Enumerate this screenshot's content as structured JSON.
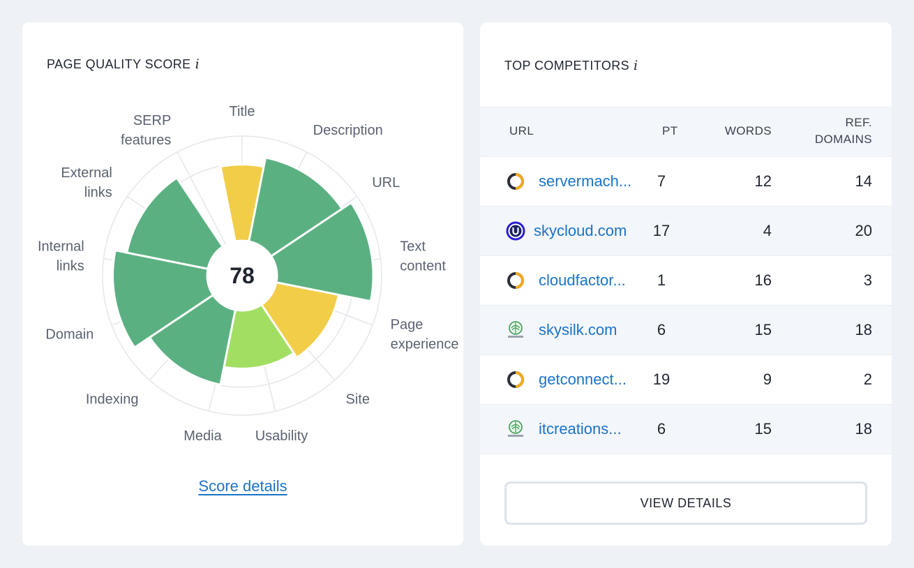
{
  "quality": {
    "title": "PAGE QUALITY SCORE",
    "info_glyph": "i",
    "score": "78",
    "score_link": "Score details",
    "colors": {
      "green": "#5bb082",
      "yellow": "#f2cd48",
      "light_green": "#a1de62",
      "grid": "#e4e6ea"
    },
    "segments": [
      {
        "label_lines": [
          "Title"
        ],
        "level": 0.78,
        "color": "yellow"
      },
      {
        "label_lines": [
          "Description"
        ],
        "level": 0.88,
        "color": "green"
      },
      {
        "label_lines": [
          "URL"
        ],
        "level": 0.88,
        "color": "green"
      },
      {
        "label_lines": [
          "Text",
          "content"
        ],
        "level": 1.0,
        "color": "green"
      },
      {
        "label_lines": [
          "Page",
          "experience"
        ],
        "level": 1.0,
        "color": "green"
      },
      {
        "label_lines": [
          "Site"
        ],
        "level": 0.64,
        "color": "yellow"
      },
      {
        "label_lines": [
          "Usability"
        ],
        "level": 0.64,
        "color": "yellow"
      },
      {
        "label_lines": [
          "Media"
        ],
        "level": 0.58,
        "color": "light_green"
      },
      {
        "label_lines": [
          "Indexing"
        ],
        "level": 0.58,
        "color": "light_green"
      },
      {
        "label_lines": [
          "Domain"
        ],
        "level": 0.78,
        "color": "green"
      },
      {
        "label_lines": [
          "Internal",
          "links"
        ],
        "level": 0.98,
        "color": "green"
      },
      {
        "label_lines": [
          "External",
          "links"
        ],
        "level": 0.98,
        "color": "green"
      },
      {
        "label_lines": [
          "SERP",
          "features"
        ],
        "level": 0.85,
        "color": "green"
      }
    ],
    "wedges": [
      {
        "from": 0,
        "to": 1,
        "level": 0.78,
        "color": "yellow"
      },
      {
        "from": 1,
        "to": 3,
        "level": 0.88,
        "color": "green"
      },
      {
        "from": 3,
        "to": 5,
        "level": 1.0,
        "color": "green"
      },
      {
        "from": 5,
        "to": 7,
        "level": 0.64,
        "color": "yellow"
      },
      {
        "from": 7,
        "to": 9,
        "level": 0.58,
        "color": "light_green"
      },
      {
        "from": 9,
        "to": 11,
        "level": 0.78,
        "color": "green"
      },
      {
        "from": 11,
        "to": 13,
        "level": 0.98,
        "color": "green"
      },
      {
        "from": 13,
        "to": 15,
        "level": 0.85,
        "color": "green"
      }
    ]
  },
  "competitors": {
    "title": "TOP COMPETITORS",
    "info_glyph": "i",
    "columns": {
      "url": "URL",
      "pt": "PT",
      "words": "WORDS",
      "ref_domains_line1": "REF.",
      "ref_domains_line2": "DOMAINS"
    },
    "rows": [
      {
        "icon": "ring-logo-icon",
        "url": "servermach...",
        "pt": "7",
        "words": "12",
        "ref": "14"
      },
      {
        "icon": "u-circle-logo-icon",
        "url": "skycloud.com",
        "pt": "17",
        "words": "4",
        "ref": "20"
      },
      {
        "icon": "ring-logo-icon",
        "url": "cloudfactor...",
        "pt": "1",
        "words": "16",
        "ref": "3"
      },
      {
        "icon": "earth-logo-icon",
        "url": "skysilk.com",
        "pt": "6",
        "words": "15",
        "ref": "18"
      },
      {
        "icon": "ring-logo-icon",
        "url": "getconnect...",
        "pt": "19",
        "words": "9",
        "ref": "2"
      },
      {
        "icon": "earth-logo-icon",
        "url": "itcreations...",
        "pt": "6",
        "words": "15",
        "ref": "18"
      }
    ],
    "button": "VIEW DETAILS"
  }
}
